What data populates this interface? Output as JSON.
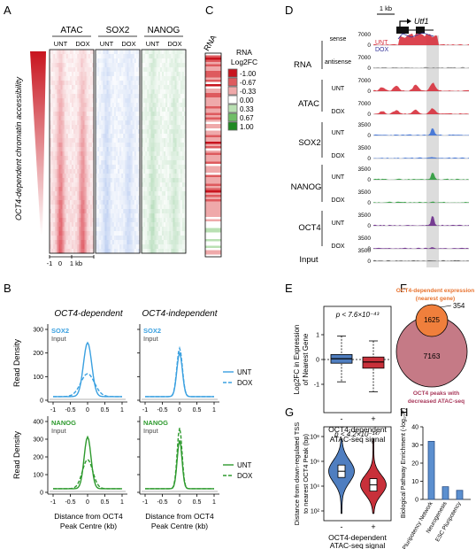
{
  "panel_labels": [
    "A",
    "B",
    "C",
    "D",
    "E",
    "F",
    "G",
    "H"
  ],
  "panel_a": {
    "y_axis_label": "OCT4-dependent chromatin accessibility",
    "groups": [
      {
        "title": "ATAC",
        "cols": [
          "UNT",
          "DOX"
        ],
        "color": "#d7303c"
      },
      {
        "title": "SOX2",
        "cols": [
          "UNT",
          "DOX"
        ],
        "color": "#3a6fd6"
      },
      {
        "title": "NANOG",
        "cols": [
          "UNT",
          "DOX"
        ],
        "color": "#2a9a3a"
      }
    ],
    "scale_ticks": [
      "-1",
      "0",
      "1 kb"
    ]
  },
  "panel_b": {
    "col_titles": [
      "OCT4-dependent",
      "OCT4-independent"
    ],
    "row_tags": [
      {
        "title": "SOX2",
        "sub": "Input",
        "color": "#3aa0e0"
      },
      {
        "title": "NANOG",
        "sub": "Input",
        "color": "#2e9a2e"
      }
    ],
    "y_label": "Read Density",
    "x_label_line1": "Distance from OCT4",
    "x_label_line2": "Peak Centre (kb)",
    "x_ticks": [
      "-1",
      "-0.5",
      "0",
      "0.5",
      "1"
    ],
    "y_ticks_top": [
      "0",
      "100",
      "200",
      "300"
    ],
    "y_ticks_bottom": [
      "0",
      "100",
      "200",
      "300",
      "400"
    ],
    "legend_top": [
      "UNT",
      "DOX"
    ],
    "legend_bottom": [
      "UNT",
      "DOX"
    ],
    "colors": {
      "sox2": "#3aa0e0",
      "nanog": "#2e9a2e"
    }
  },
  "panel_c": {
    "column_label": "RNA",
    "legend_title_1": "RNA",
    "legend_title_2": "Log2FC",
    "legend": [
      {
        "label": "-1.00",
        "color": "#c8141e"
      },
      {
        "label": "-0.67",
        "color": "#de5a5e"
      },
      {
        "label": "-0.33",
        "color": "#efa9aa"
      },
      {
        "label": "0.00",
        "color": "#ffffff"
      },
      {
        "label": "0.33",
        "color": "#b9e0b3"
      },
      {
        "label": "0.67",
        "color": "#6fbe66"
      },
      {
        "label": "1.00",
        "color": "#1f8a22"
      }
    ]
  },
  "panel_d": {
    "scale_label": "1 kb",
    "gene": "Utf1",
    "tracks": [
      {
        "group": "RNA",
        "sub": "sense",
        "max": "7000",
        "color": "#d7303c"
      },
      {
        "group": "",
        "sub": "antisense",
        "max": "7000",
        "color": "#888888"
      },
      {
        "group": "ATAC",
        "sub": "UNT",
        "max": "7000",
        "color": "#d7303c"
      },
      {
        "group": "",
        "sub": "DOX",
        "max": "7000",
        "color": "#d7303c"
      },
      {
        "group": "SOX2",
        "sub": "UNT",
        "max": "3500",
        "color": "#3a6fd6"
      },
      {
        "group": "",
        "sub": "DOX",
        "max": "3500",
        "color": "#3a6fd6"
      },
      {
        "group": "NANOG",
        "sub": "UNT",
        "max": "3500",
        "color": "#2a9a3a"
      },
      {
        "group": "",
        "sub": "DOX",
        "max": "3500",
        "color": "#2a9a3a"
      },
      {
        "group": "OCT4",
        "sub": "UNT",
        "max": "3500",
        "color": "#6a2a8a"
      },
      {
        "group": "",
        "sub": "DOX",
        "max": "3500",
        "color": "#6a2a8a"
      },
      {
        "group": "Input",
        "sub": "",
        "max": "3500",
        "color": "#555555"
      }
    ],
    "legend": [
      {
        "label": "UNT",
        "color": "#d7303c"
      },
      {
        "label": "DOX",
        "color": "#333399"
      }
    ]
  },
  "panel_e": {
    "y_label_1": "Log2FC in Expression",
    "y_label_2": "of Nearest Gene",
    "annotation": "p < 7.6×10⁻⁴³",
    "x_categories": [
      "-",
      "+"
    ],
    "x_label_1": "OCT4-dependent",
    "x_label_2": "ATAC-seq signal",
    "y_ticks": [
      "-1",
      "0",
      "1"
    ],
    "box_colors": [
      "#4f7ec0",
      "#c8303a"
    ]
  },
  "panel_f": {
    "title_1": "OCT4-dependent expression",
    "title_2": "(nearest gene)",
    "small_count": "1625",
    "outside_count": "354",
    "large_count": "7163",
    "bottom_1": "OCT4 peaks with",
    "bottom_2": "decreased ATAC-seq",
    "colors": {
      "small": "#f07f3c",
      "large": "#c57a86",
      "label": "#e8732f",
      "bottom": "#a8385a"
    }
  },
  "panel_g": {
    "y_label_1": "Distance from down-regulated TSS",
    "y_label_2": "to nearest OCT4 Peak (bp)",
    "annotation": "p < 4.2×10⁻¹⁴⁷",
    "y_ticks": [
      "10²",
      "10⁴",
      "10⁶",
      "10⁸"
    ],
    "x_categories": [
      "-",
      "+"
    ],
    "x_label_1": "OCT4-dependent",
    "x_label_2": "ATAC-seq signal",
    "violin_colors": [
      "#4f7ec0",
      "#c8303a"
    ]
  },
  "chart_data": [
    {
      "type": "bar",
      "panel": "H",
      "categories": [
        "Pluripotency Network",
        "Neurogenesis",
        "ESC Pluripotency"
      ],
      "values": [
        32,
        7,
        5
      ],
      "ylabel": "Biological Pathway Enrichment (-log₁₀P)",
      "ylim": [
        0,
        40
      ],
      "y_ticks": [
        "0",
        "10",
        "20",
        "30",
        "40"
      ],
      "color": "#5b8fcf"
    }
  ]
}
